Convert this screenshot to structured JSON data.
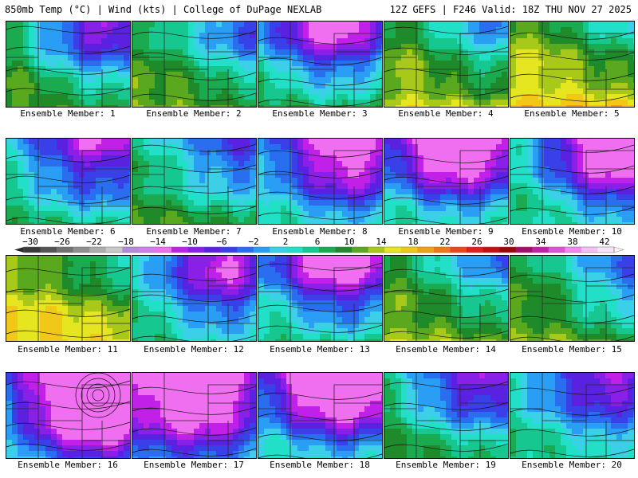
{
  "header": {
    "left_title": "850mb Temp (°C) | Wind (kts) | College of DuPage NEXLAB",
    "right_title": "12Z GEFS | F246 Valid: 18Z THU NOV 27 2025"
  },
  "members": [
    {
      "label": "Ensemble Member: 1"
    },
    {
      "label": "Ensemble Member: 2"
    },
    {
      "label": "Ensemble Member: 3"
    },
    {
      "label": "Ensemble Member: 4"
    },
    {
      "label": "Ensemble Member: 5"
    },
    {
      "label": "Ensemble Member: 6"
    },
    {
      "label": "Ensemble Member: 7"
    },
    {
      "label": "Ensemble Member: 8"
    },
    {
      "label": "Ensemble Member: 9"
    },
    {
      "label": "Ensemble Member: 10"
    },
    {
      "label": "Ensemble Member: 11"
    },
    {
      "label": "Ensemble Member: 12"
    },
    {
      "label": "Ensemble Member: 13"
    },
    {
      "label": "Ensemble Member: 14"
    },
    {
      "label": "Ensemble Member: 15"
    },
    {
      "label": "Ensemble Member: 16"
    },
    {
      "label": "Ensemble Member: 17"
    },
    {
      "label": "Ensemble Member: 18"
    },
    {
      "label": "Ensemble Member: 19"
    },
    {
      "label": "Ensemble Member: 20"
    }
  ],
  "colorbar": {
    "ticks": [
      "-30",
      "-26",
      "-22",
      "-18",
      "-14",
      "-10",
      "-6",
      "-2",
      "2",
      "6",
      "10",
      "14",
      "18",
      "22",
      "26",
      "30",
      "34",
      "38",
      "42"
    ],
    "colors": [
      "#3a3a3a",
      "#555555",
      "#727272",
      "#8f8f8f",
      "#adadad",
      "#c9c9c9",
      "#b58ad8",
      "#d080ee",
      "#f06ef0",
      "#c020e8",
      "#8a20e8",
      "#5a22e0",
      "#3a40e8",
      "#2a6ef0",
      "#2a9ef5",
      "#3cd0e8",
      "#22e0c8",
      "#16c890",
      "#1aaa50",
      "#1e8a2a",
      "#5aa81e",
      "#a8c81a",
      "#e6e620",
      "#f2c818",
      "#f2a018",
      "#ee7818",
      "#e84818",
      "#e01e1e",
      "#c01010",
      "#9a0808",
      "#a0106a",
      "#c020a8",
      "#e050d8",
      "#f088f0",
      "#f4c0f4",
      "#f8e4f8"
    ]
  }
}
